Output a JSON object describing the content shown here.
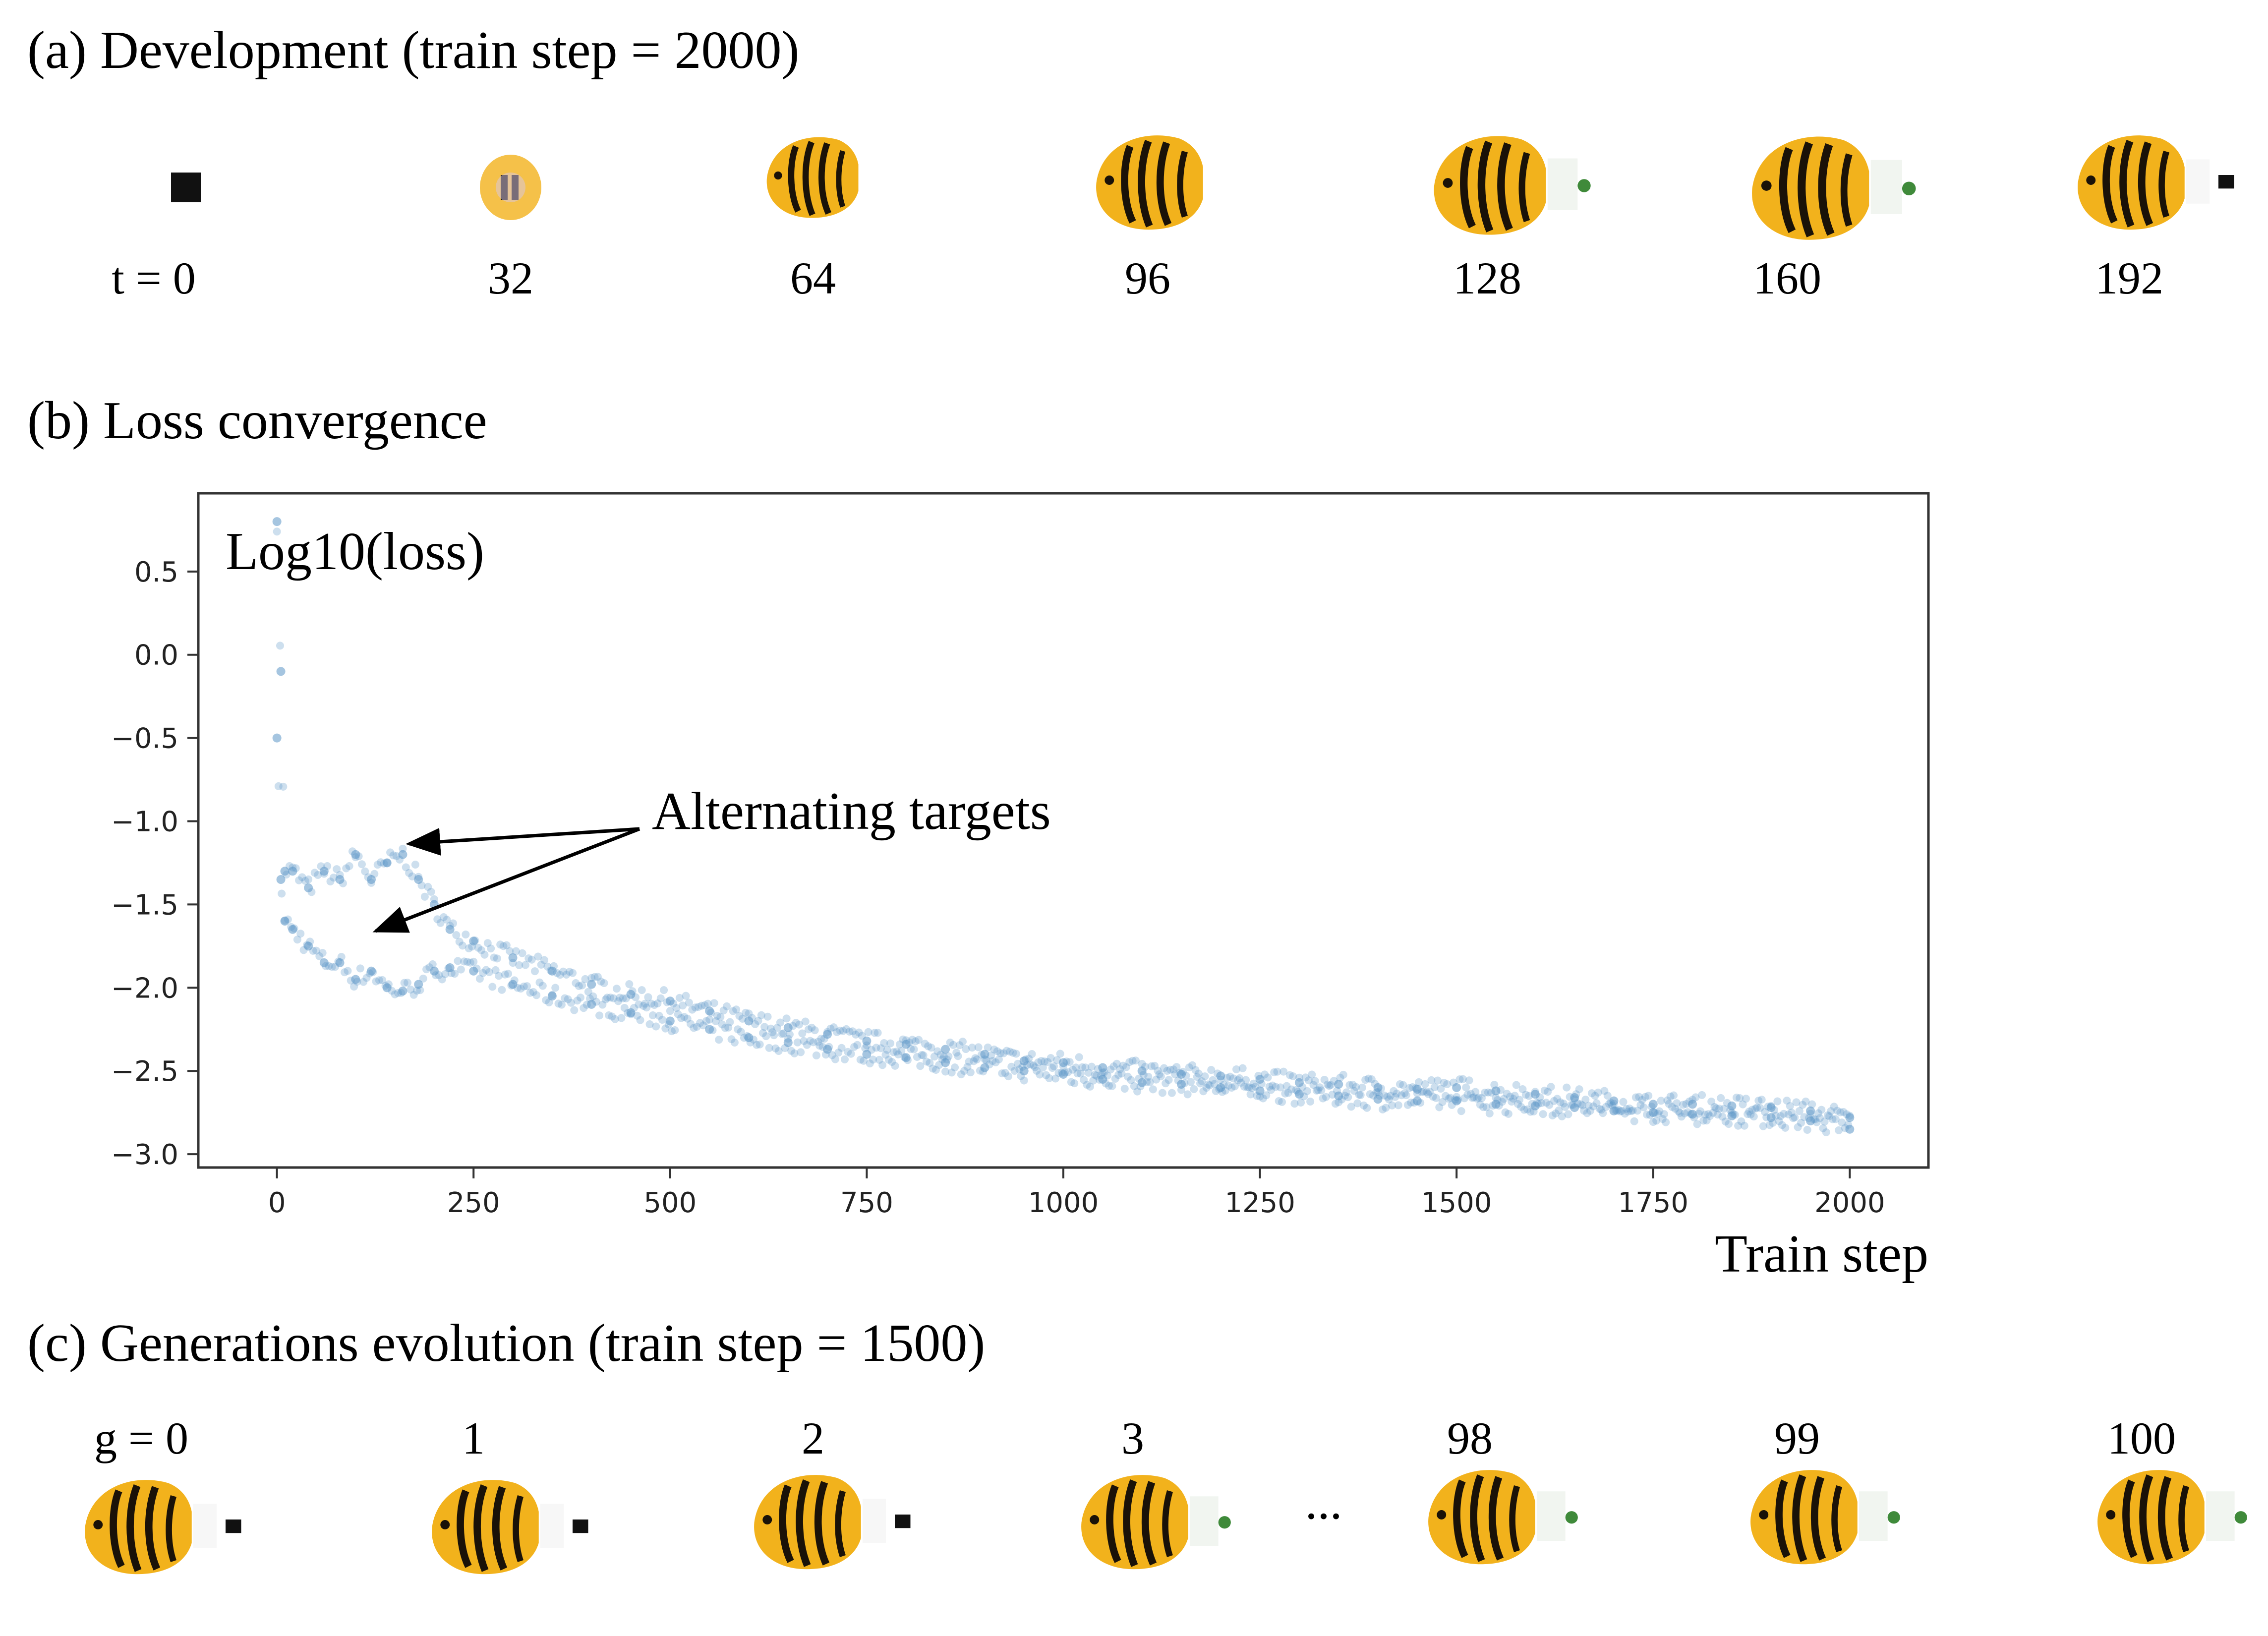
{
  "panel_a": {
    "title": "(a) Development (train step = 2000)",
    "labels": [
      "t = 0",
      "32",
      "64",
      "96",
      "128",
      "160",
      "192"
    ]
  },
  "panel_b": {
    "title": "(b) Loss convergence"
  },
  "panel_c": {
    "title": "(c) Generations  evolution (train step = 1500)",
    "labels": [
      "g = 0",
      "1",
      "2",
      "3",
      "98",
      "99",
      "100"
    ],
    "ellipsis": "..."
  },
  "colors": {
    "fish_body": "#f2b21c",
    "fish_stripe": "#1a1208",
    "point": "#5b95c6",
    "axis": "#333333"
  },
  "chart_data": {
    "type": "scatter",
    "title": "Log10(loss)",
    "xlabel": "Train step",
    "ylabel": "",
    "xlim": [
      -100,
      2100
    ],
    "ylim": [
      -3.08,
      0.97
    ],
    "xticks": [
      0,
      250,
      500,
      750,
      1000,
      1250,
      1500,
      1750,
      2000
    ],
    "yticks": [
      0.5,
      0.0,
      -0.5,
      -1.0,
      -1.5,
      -2.0,
      -2.5,
      -3.0
    ],
    "annotation": "Alternating targets",
    "grid": false,
    "series": [
      {
        "x": [
          0,
          5,
          10,
          20,
          40,
          60,
          80,
          100,
          120,
          140,
          160,
          180,
          200,
          220,
          250,
          300,
          350,
          400,
          450,
          500,
          550,
          600,
          650,
          700,
          750,
          800,
          850,
          900,
          950,
          1000,
          1050,
          1100,
          1150,
          1200,
          1250,
          1300,
          1350,
          1400,
          1450,
          1500,
          1550,
          1600,
          1650,
          1700,
          1750,
          1800,
          1850,
          1900,
          1950,
          2000
        ],
        "upper_band": [
          0.8,
          -0.1,
          -1.3,
          -1.3,
          -1.4,
          -1.3,
          -1.35,
          -1.2,
          -1.35,
          -1.25,
          -1.2,
          -1.35,
          -1.5,
          -1.65,
          -1.72,
          -1.82,
          -1.9,
          -1.98,
          -2.04,
          -2.08,
          -2.14,
          -2.2,
          -2.24,
          -2.28,
          -2.32,
          -2.34,
          -2.37,
          -2.4,
          -2.44,
          -2.45,
          -2.48,
          -2.5,
          -2.52,
          -2.53,
          -2.55,
          -2.57,
          -2.58,
          -2.6,
          -2.61,
          -2.6,
          -2.62,
          -2.64,
          -2.66,
          -2.68,
          -2.7,
          -2.7,
          -2.71,
          -2.72,
          -2.74,
          -2.78
        ],
        "lower_band": [
          -0.5,
          -1.35,
          -1.6,
          -1.65,
          -1.75,
          -1.85,
          -1.85,
          -1.95,
          -1.9,
          -2.0,
          -2.02,
          -1.98,
          -1.9,
          -1.88,
          -1.9,
          -1.98,
          -2.05,
          -2.1,
          -2.15,
          -2.2,
          -2.25,
          -2.3,
          -2.33,
          -2.37,
          -2.4,
          -2.42,
          -2.45,
          -2.48,
          -2.5,
          -2.52,
          -2.55,
          -2.57,
          -2.58,
          -2.6,
          -2.62,
          -2.64,
          -2.65,
          -2.67,
          -2.68,
          -2.68,
          -2.7,
          -2.71,
          -2.72,
          -2.74,
          -2.75,
          -2.76,
          -2.77,
          -2.78,
          -2.8,
          -2.85
        ]
      }
    ]
  }
}
